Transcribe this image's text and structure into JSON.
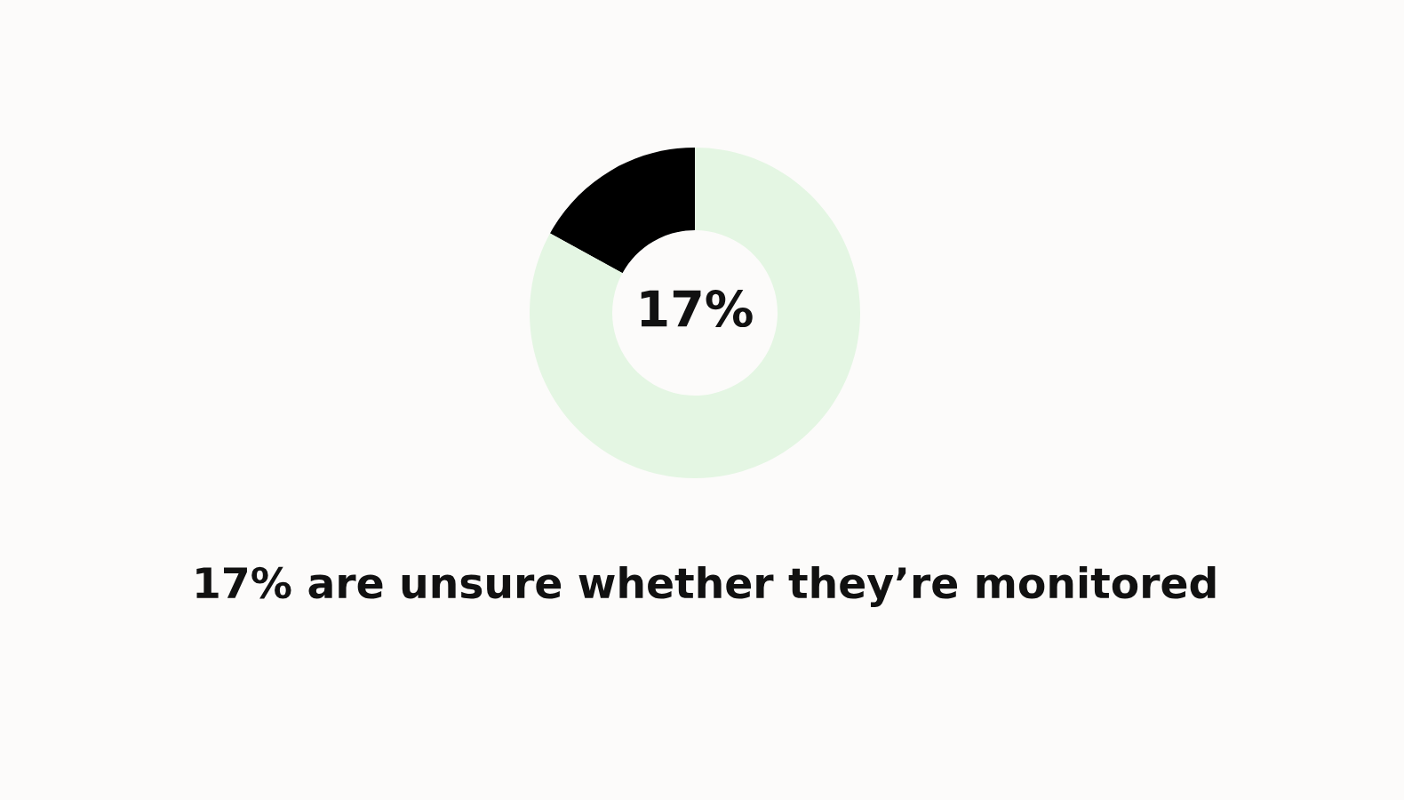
{
  "chart_data": {
    "type": "donut",
    "title": "17% are unsure whether they’re monitored",
    "categories": [
      null,
      null
    ],
    "values": [
      17,
      83
    ],
    "colors": [
      "#000000",
      "#e4f6e3"
    ],
    "annotations": [
      "17%"
    ]
  }
}
